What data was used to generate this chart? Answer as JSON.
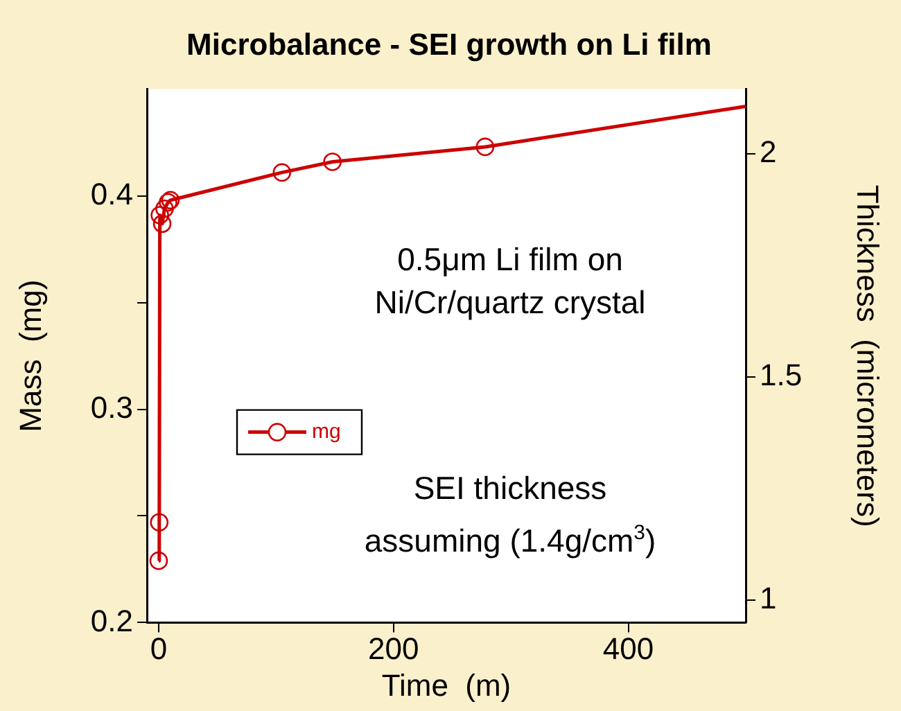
{
  "chart_data": {
    "type": "line",
    "title": "Microbalance - SEI growth on Li film",
    "xlabel": "Time  (m)",
    "ylabel": "Mass  (mg)",
    "y2label": "Thickness  (micrometers)",
    "x": [
      0,
      0.5,
      1,
      3,
      5,
      8,
      10,
      105,
      148,
      278
    ],
    "series": [
      {
        "name": "mg",
        "color": "#cc0000",
        "values": [
          0.229,
          0.247,
          0.391,
          0.387,
          0.394,
          0.397,
          0.398,
          0.411,
          0.416,
          0.423
        ],
        "marker": "circle"
      },
      {
        "type": "line",
        "color": "#cc0000",
        "x": [
          278,
          500
        ],
        "values": [
          0.423,
          0.442
        ],
        "marker": "none"
      }
    ],
    "xlim": [
      -10,
      500
    ],
    "xticks": [
      0,
      200,
      400
    ],
    "ylim": [
      0.2,
      0.45
    ],
    "yticks": [
      0.2,
      {
        "value": 0.25,
        "label": null
      },
      0.3,
      {
        "value": 0.35,
        "label": null
      },
      0.4
    ],
    "y2lim": [
      0.95,
      2.145
    ],
    "y2ticks": [
      1,
      1.5,
      2
    ],
    "annotations": [
      "0.5μm Li film on",
      "Ni/Cr/quartz crystal",
      "SEI thickness",
      "assuming (1.4g/cm$^{3}$)"
    ],
    "legend": "left",
    "grid": false,
    "line_style": "solid"
  }
}
